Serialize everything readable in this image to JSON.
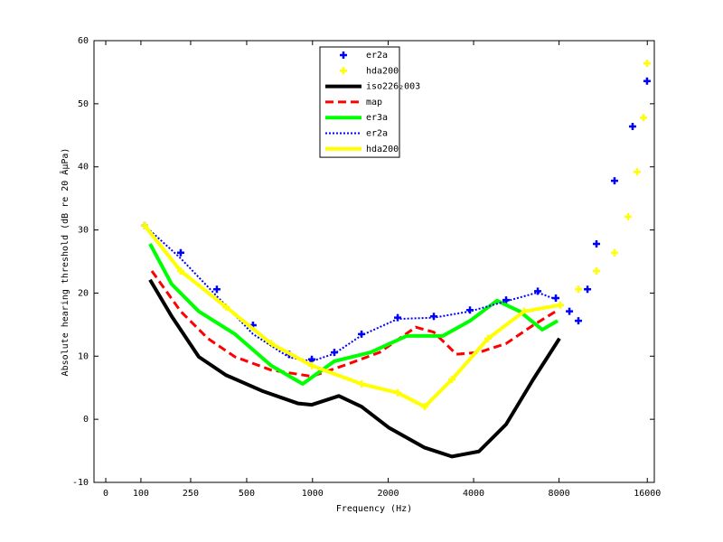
{
  "chart_data": {
    "type": "line",
    "xlabel": "Frequency (Hz)",
    "ylabel": "Absolute hearing threshold (dB re 20 ÂµPa)",
    "xlim": [
      0,
      40
    ],
    "ylim": [
      -10,
      60
    ],
    "xticks": [
      {
        "value": 0.84,
        "label": "0"
      },
      {
        "value": 3.35,
        "label": "100"
      },
      {
        "value": 6.9,
        "label": "250"
      },
      {
        "value": 10.9,
        "label": "500"
      },
      {
        "value": 15.6,
        "label": "1000"
      },
      {
        "value": 21.0,
        "label": "2000"
      },
      {
        "value": 27.1,
        "label": "4000"
      },
      {
        "value": 33.2,
        "label": "8000"
      },
      {
        "value": 39.5,
        "label": "16000"
      }
    ],
    "yticks": [
      -10,
      0,
      10,
      20,
      30,
      40,
      50,
      60
    ],
    "legend": "top",
    "series": [
      {
        "name": "er2a",
        "color": "#0000ff",
        "style": "markers",
        "x": [
          3.61,
          6.19,
          8.77,
          11.35,
          13.94,
          15.55,
          17.16,
          19.1,
          21.68,
          24.26,
          26.84,
          29.42,
          31.68,
          32.97,
          33.94,
          34.58,
          35.23,
          35.87,
          37.16,
          38.45,
          39.48
        ],
        "values": [
          30.7,
          26.4,
          20.6,
          14.9,
          10.3,
          9.5,
          10.6,
          13.5,
          16.1,
          16.3,
          17.3,
          18.9,
          20.3,
          19.2,
          17.1,
          15.6,
          20.6,
          27.8,
          37.8,
          46.4,
          53.6
        ]
      },
      {
        "name": "hda200",
        "color": "#ffff00",
        "style": "markers",
        "x": [
          3.61,
          6.19,
          9.42,
          12.65,
          15.55,
          19.1,
          21.68,
          23.61,
          25.55,
          28.13,
          30.71,
          33.29,
          34.58,
          35.87,
          37.16,
          38.13,
          38.77,
          39.23,
          39.48
        ],
        "values": [
          30.7,
          23.5,
          17.8,
          12.0,
          8.5,
          5.6,
          4.2,
          2.0,
          6.3,
          12.8,
          17.1,
          18.1,
          20.6,
          23.5,
          26.4,
          32.1,
          39.2,
          47.8,
          56.4
        ]
      },
      {
        "name": "iso226₂003",
        "color": "#000000",
        "style": "line",
        "x": [
          4.0,
          5.55,
          7.48,
          9.42,
          12.0,
          14.58,
          15.55,
          17.48,
          19.1,
          21.03,
          23.61,
          25.55,
          27.48,
          29.42,
          31.35,
          33.23
        ],
        "values": [
          22.1,
          16.3,
          9.9,
          7.0,
          4.5,
          2.5,
          2.3,
          3.7,
          2.0,
          -1.3,
          -4.5,
          -5.9,
          -5.1,
          -0.8,
          6.3,
          12.8
        ]
      },
      {
        "name": "map",
        "color": "#ff0000",
        "style": "dashed",
        "x": [
          4.13,
          6.19,
          8.13,
          10.06,
          12.65,
          15.55,
          17.81,
          20.39,
          22.97,
          24.26,
          25.87,
          27.48,
          29.42,
          31.35,
          32.97
        ],
        "values": [
          23.5,
          17.1,
          12.8,
          9.9,
          7.8,
          6.8,
          8.5,
          10.6,
          14.6,
          13.8,
          10.3,
          10.6,
          12.0,
          14.9,
          17.1
        ]
      },
      {
        "name": "er3a",
        "color": "#00ff00",
        "style": "line",
        "x": [
          4.0,
          5.55,
          7.48,
          10.06,
          12.65,
          14.9,
          17.16,
          19.74,
          22.32,
          24.9,
          26.84,
          28.77,
          30.39,
          32.0,
          33.1
        ],
        "values": [
          27.8,
          21.4,
          17.1,
          13.5,
          8.5,
          5.6,
          9.2,
          10.6,
          13.2,
          13.2,
          15.6,
          18.8,
          17.1,
          14.2,
          15.6
        ]
      },
      {
        "name": "er2a",
        "color": "#0000ff",
        "style": "dotted",
        "x": [
          3.61,
          6.19,
          8.77,
          11.35,
          13.94,
          15.55,
          17.16,
          19.1,
          21.68,
          24.26,
          26.84,
          29.42,
          31.68,
          32.97
        ],
        "values": [
          30.7,
          25.5,
          19.5,
          13.5,
          9.8,
          9.2,
          10.4,
          13.3,
          15.9,
          16.1,
          17.1,
          18.7,
          20.1,
          19.0
        ]
      },
      {
        "name": "hda200",
        "color": "#ffff00",
        "style": "line",
        "x": [
          3.61,
          6.19,
          9.42,
          12.65,
          15.55,
          19.1,
          21.68,
          23.61,
          25.55,
          28.13,
          30.71,
          33.29
        ],
        "values": [
          30.7,
          23.5,
          17.8,
          12.0,
          8.5,
          5.6,
          4.2,
          2.0,
          6.3,
          12.8,
          17.1,
          18.1
        ]
      }
    ]
  }
}
